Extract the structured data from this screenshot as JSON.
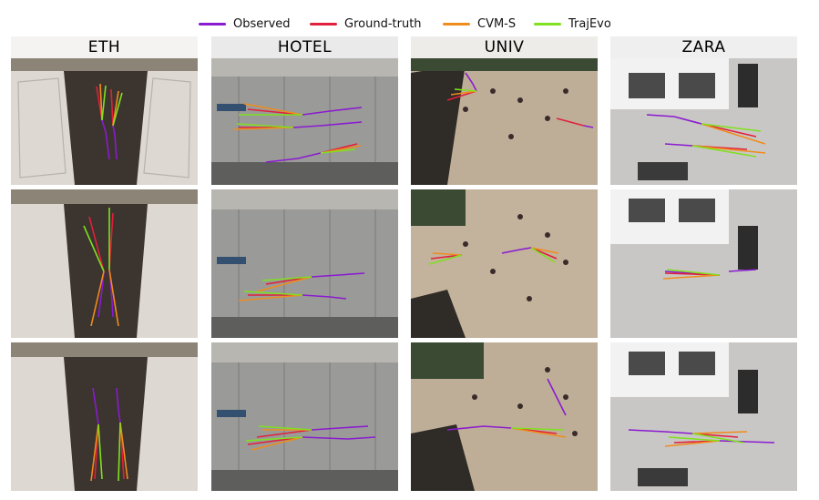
{
  "legend": [
    {
      "label": "Observed",
      "color": "#8a1bd0"
    },
    {
      "label": "Ground-truth",
      "color": "#e0203c"
    },
    {
      "label": "CVM-S",
      "color": "#f08c1c"
    },
    {
      "label": "TrajEvo",
      "color": "#7fe020"
    }
  ],
  "columns": [
    {
      "title": "ETH"
    },
    {
      "title": "HOTEL"
    },
    {
      "title": "UNIV"
    },
    {
      "title": "ZARA"
    }
  ]
}
